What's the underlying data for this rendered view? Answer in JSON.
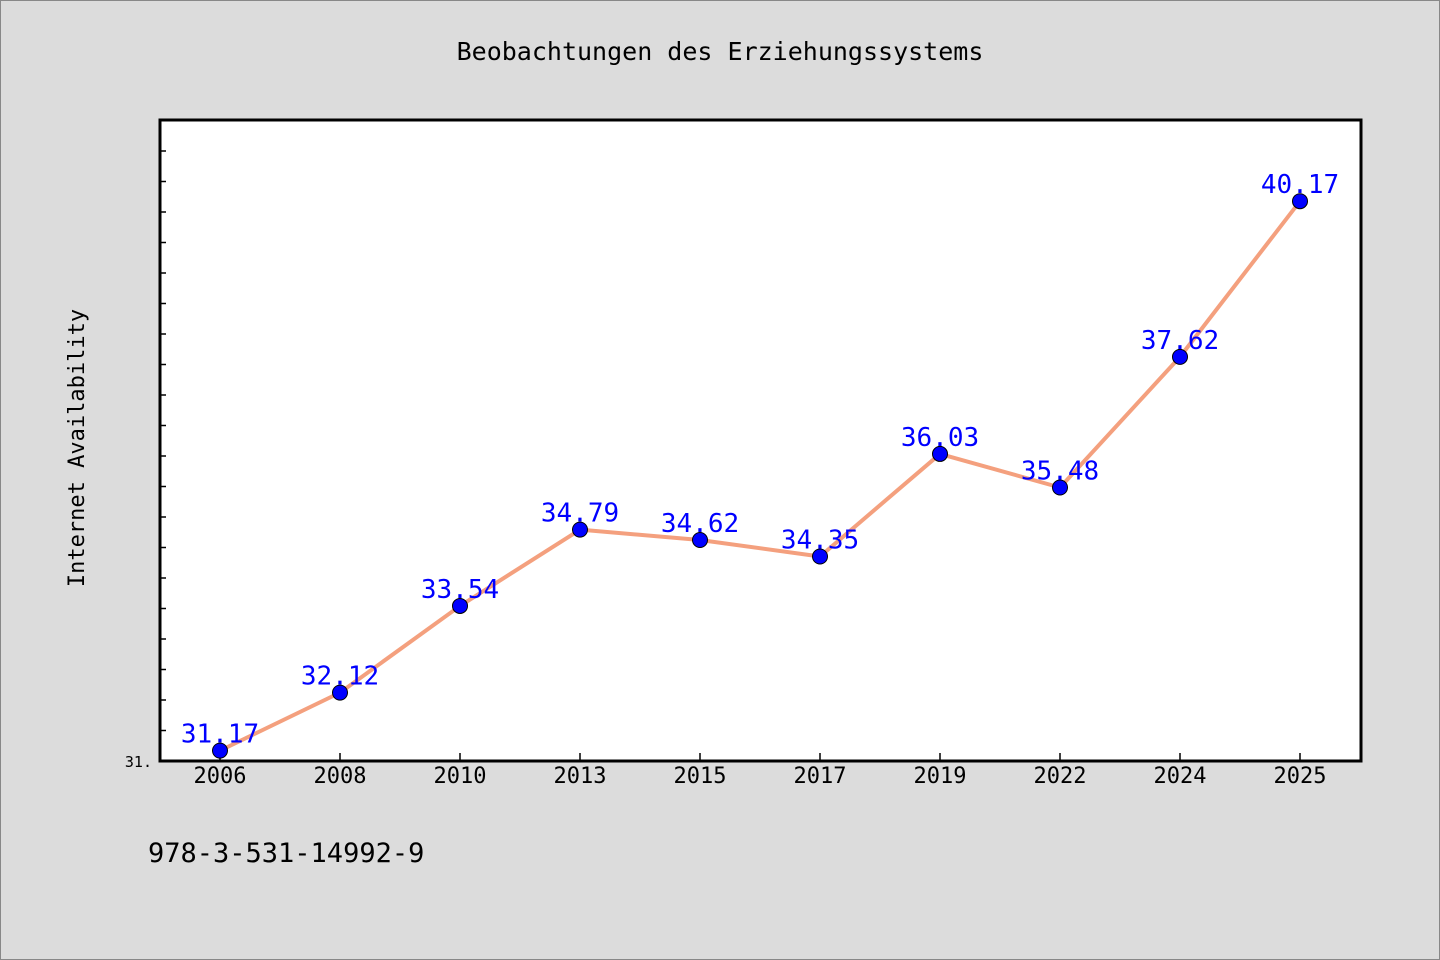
{
  "chart_data": {
    "type": "line",
    "title": "Beobachtungen des Erziehungssystems",
    "ylabel": "Internet Availability",
    "xlabel": "",
    "categories": [
      "2006",
      "2008",
      "2010",
      "2013",
      "2015",
      "2017",
      "2019",
      "2022",
      "2024",
      "2025"
    ],
    "series": [
      {
        "values": [
          31.17,
          32.12,
          33.54,
          34.79,
          34.62,
          34.35,
          36.03,
          35.48,
          37.62,
          40.17
        ],
        "labels": [
          "31.17",
          "32.12",
          "33.54",
          "34.79",
          "34.62",
          "34.35",
          "36.03",
          "35.48",
          "37.62",
          "40.17"
        ],
        "line_color": "#f4a07e",
        "marker_color": "#0000ff"
      }
    ],
    "ylim": [
      31.0,
      41.5
    ],
    "ytick_label": "31.",
    "grid": false,
    "legend": "none"
  },
  "footer": {
    "isbn": "978-3-531-14992-9"
  }
}
